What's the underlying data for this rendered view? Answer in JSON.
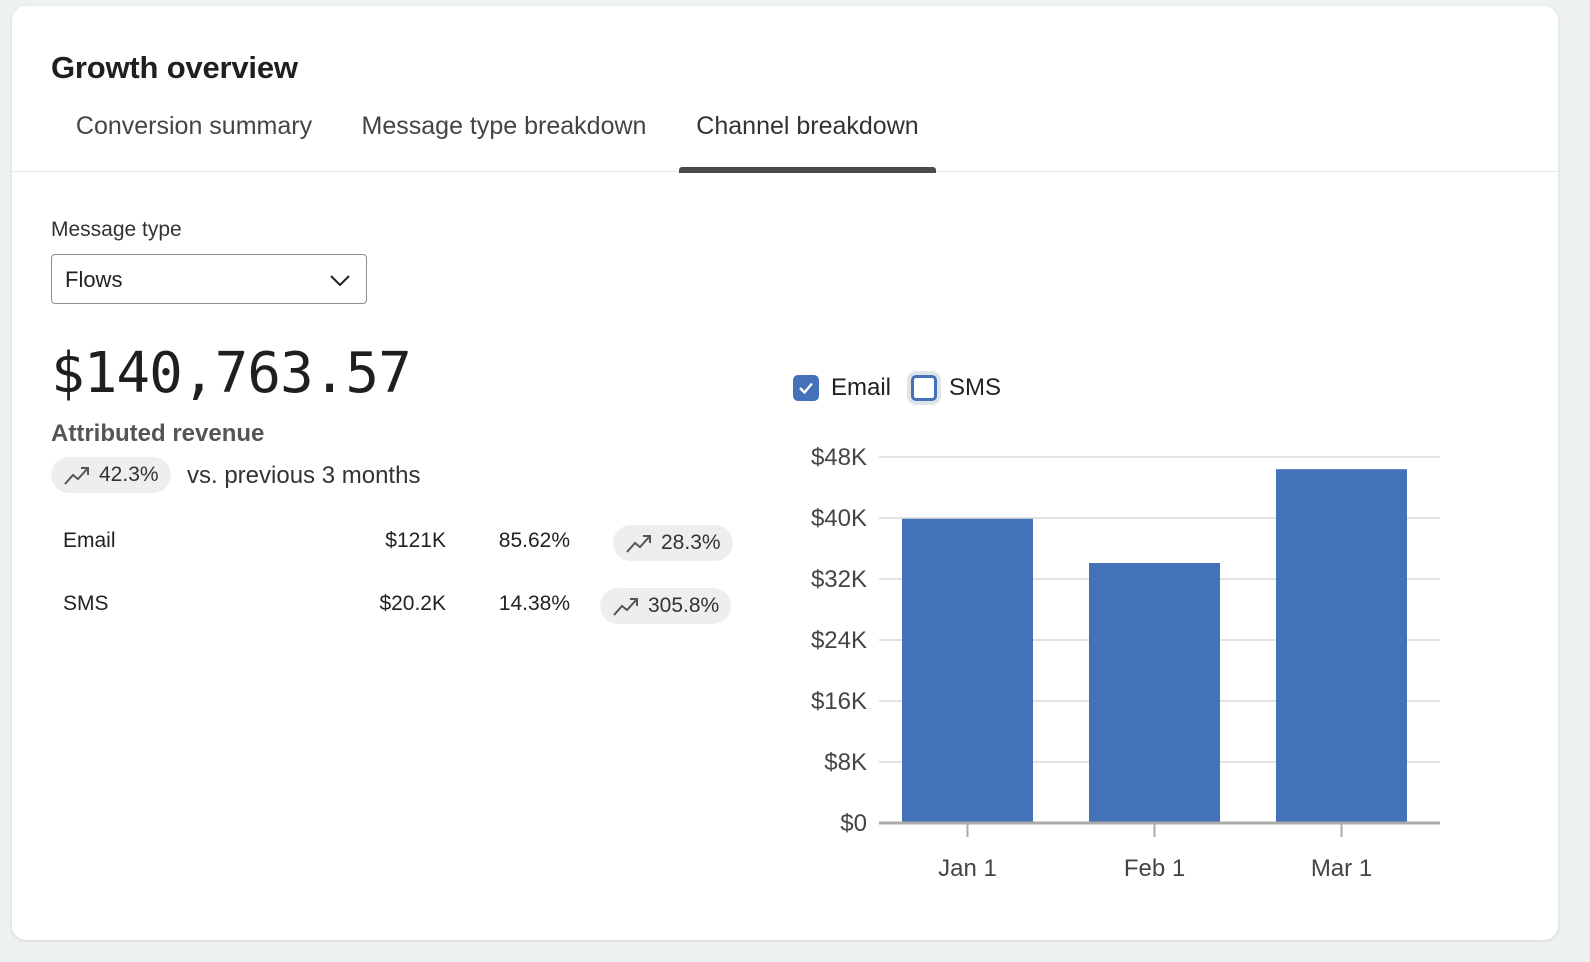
{
  "header": {
    "title": "Growth overview"
  },
  "tabs": [
    {
      "label": "Conversion summary",
      "active": false
    },
    {
      "label": "Message type breakdown",
      "active": false
    },
    {
      "label": "Channel breakdown",
      "active": true
    }
  ],
  "filter": {
    "label": "Message type",
    "selected": "Flows",
    "icon": "chevron-down-icon"
  },
  "summary": {
    "total": "$140,763.57",
    "label": "Attributed revenue",
    "change": "42.3%",
    "change_icon": "trend-up-icon",
    "compare_text": "vs. previous 3 months"
  },
  "channels": [
    {
      "name": "Email",
      "revenue": "$121K",
      "share": "85.62%",
      "change": "28.3%"
    },
    {
      "name": "SMS",
      "revenue": "$20.2K",
      "share": "14.38%",
      "change": "305.8%"
    }
  ],
  "legend": [
    {
      "label": "Email",
      "checked": true
    },
    {
      "label": "SMS",
      "checked": false
    }
  ],
  "colors": {
    "email": "#4372b8",
    "accent": "#4372b8"
  },
  "chart_data": {
    "type": "bar",
    "categories": [
      "Jan 1",
      "Feb 1",
      "Mar 1"
    ],
    "series": [
      {
        "name": "Email",
        "values": [
          39900,
          34100,
          46400
        ]
      }
    ],
    "yticks": [
      "$0",
      "$8K",
      "$16K",
      "$24K",
      "$32K",
      "$40K",
      "$48K"
    ],
    "ylim": [
      0,
      48000
    ],
    "grid": true,
    "legend_position": "top-left"
  }
}
